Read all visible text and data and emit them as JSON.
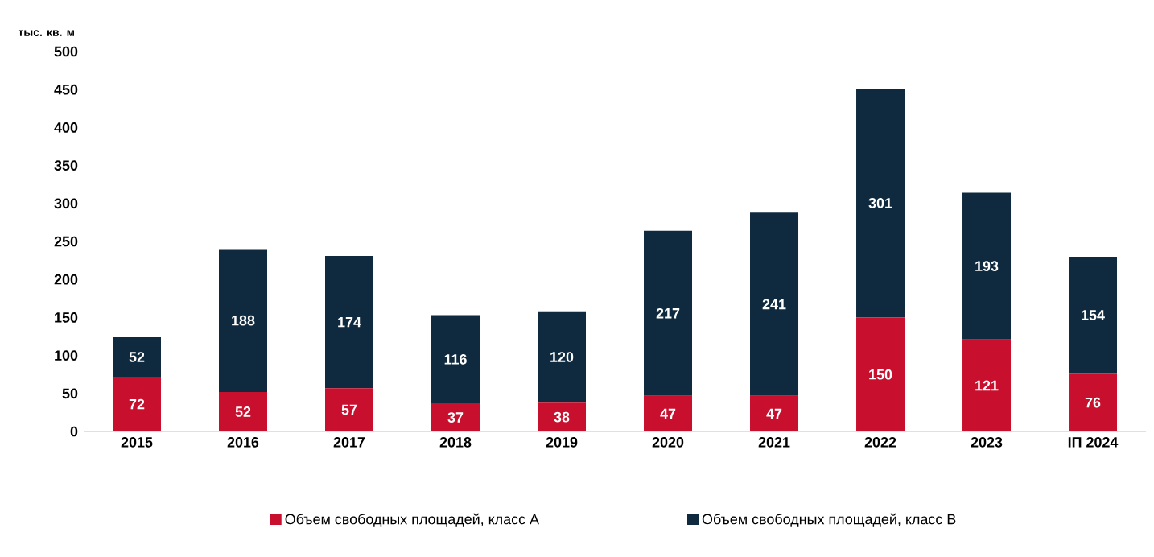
{
  "chart_data": {
    "type": "bar",
    "stacked": true,
    "ylabel": "тыс. кв. м",
    "categories": [
      "2015",
      "2016",
      "2017",
      "2018",
      "2019",
      "2020",
      "2021",
      "2022",
      "2023",
      "IП 2024"
    ],
    "series": [
      {
        "name": "Объем свободных площадей, класс А",
        "color": "#c8102e",
        "values": [
          72,
          52,
          57,
          37,
          38,
          47,
          47,
          150,
          121,
          76
        ]
      },
      {
        "name": "Объем свободных площадей, класс В",
        "color": "#0f2a3f",
        "values": [
          52,
          188,
          174,
          116,
          120,
          217,
          241,
          301,
          193,
          154
        ]
      }
    ],
    "ylim": [
      0,
      500
    ],
    "yticks": [
      0,
      50,
      100,
      150,
      200,
      250,
      300,
      350,
      400,
      450,
      500
    ],
    "data_labels": true,
    "legend": "bottom",
    "grid": false
  }
}
